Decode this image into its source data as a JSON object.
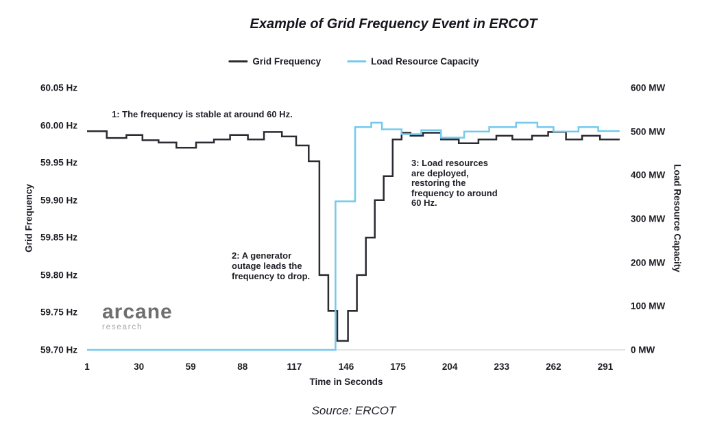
{
  "title": "Example of Grid Frequency Event in ERCOT",
  "source": "Source: ERCOT",
  "logo": {
    "name": "arcane",
    "sub": "research"
  },
  "legend": {
    "items": [
      {
        "label": "Grid Frequency",
        "color": "#2a2a31"
      },
      {
        "label": "Load Resource Capacity",
        "color": "#74c9ee"
      }
    ]
  },
  "annotations": [
    {
      "text": "1: The frequency is stable at around 60 Hz."
    },
    {
      "text": "2: A generator\noutage leads the\nfrequency to drop."
    },
    {
      "text": "3: Load resources\nare deployed,\nrestoring the\nfrequency to around\n60 Hz."
    }
  ],
  "chart_data": {
    "type": "line",
    "step": true,
    "grid": "off",
    "legend_position": "top",
    "title": "Example of Grid Frequency Event in ERCOT",
    "xlabel": "Time in Seconds",
    "x_range": [
      1,
      299
    ],
    "x_ticks": [
      {
        "value": 1,
        "label": "1"
      },
      {
        "value": 30,
        "label": "30"
      },
      {
        "value": 59,
        "label": "59"
      },
      {
        "value": 88,
        "label": "88"
      },
      {
        "value": 117,
        "label": "117"
      },
      {
        "value": 146,
        "label": "146"
      },
      {
        "value": 175,
        "label": "175"
      },
      {
        "value": 204,
        "label": "204"
      },
      {
        "value": 233,
        "label": "233"
      },
      {
        "value": 262,
        "label": "262"
      },
      {
        "value": 291,
        "label": "291"
      }
    ],
    "left_axis": {
      "label": "Grid Frequency",
      "unit": "Hz",
      "range": [
        59.7,
        60.05
      ],
      "ticks": [
        {
          "value": 60.05,
          "label": "60.05 Hz"
        },
        {
          "value": 60.0,
          "label": "60.00 Hz"
        },
        {
          "value": 59.95,
          "label": "59.95 Hz"
        },
        {
          "value": 59.9,
          "label": "59.90 Hz"
        },
        {
          "value": 59.85,
          "label": "59.85 Hz"
        },
        {
          "value": 59.8,
          "label": "59.80 Hz"
        },
        {
          "value": 59.75,
          "label": "59.75 Hz"
        },
        {
          "value": 59.7,
          "label": "59.70 Hz"
        }
      ]
    },
    "right_axis": {
      "label": "Load Resource Capacity",
      "unit": "MW",
      "range": [
        0,
        600
      ],
      "ticks": [
        {
          "value": 600,
          "label": "600 MW"
        },
        {
          "value": 500,
          "label": "500 MW"
        },
        {
          "value": 400,
          "label": "400 MW"
        },
        {
          "value": 300,
          "label": "300 MW"
        },
        {
          "value": 200,
          "label": "200 MW"
        },
        {
          "value": 100,
          "label": "100 MW"
        },
        {
          "value": 0,
          "label": "0 MW"
        }
      ]
    },
    "series": [
      {
        "name": "Grid Frequency",
        "axis": "left",
        "color": "#2a2a31",
        "points": [
          [
            1,
            59.992
          ],
          [
            12,
            59.983
          ],
          [
            23,
            59.987
          ],
          [
            32,
            59.98
          ],
          [
            41,
            59.977
          ],
          [
            51,
            59.97
          ],
          [
            62,
            59.977
          ],
          [
            72,
            59.981
          ],
          [
            81,
            59.987
          ],
          [
            91,
            59.981
          ],
          [
            100,
            59.991
          ],
          [
            110,
            59.985
          ],
          [
            118,
            59.973
          ],
          [
            125,
            59.952
          ],
          [
            131,
            59.8
          ],
          [
            136,
            59.752
          ],
          [
            141,
            59.712
          ],
          [
            147,
            59.752
          ],
          [
            152,
            59.8
          ],
          [
            157,
            59.85
          ],
          [
            162,
            59.9
          ],
          [
            167,
            59.932
          ],
          [
            172,
            59.981
          ],
          [
            177,
            59.99
          ],
          [
            182,
            59.986
          ],
          [
            189,
            59.99
          ],
          [
            199,
            59.981
          ],
          [
            209,
            59.976
          ],
          [
            220,
            59.981
          ],
          [
            230,
            59.986
          ],
          [
            239,
            59.981
          ],
          [
            250,
            59.986
          ],
          [
            259,
            59.991
          ],
          [
            269,
            59.981
          ],
          [
            278,
            59.986
          ],
          [
            288,
            59.981
          ],
          [
            299,
            59.981
          ]
        ]
      },
      {
        "name": "Load Resource Capacity",
        "axis": "right",
        "color": "#74c9ee",
        "points": [
          [
            1,
            0
          ],
          [
            140,
            340
          ],
          [
            151,
            510
          ],
          [
            160,
            520
          ],
          [
            166,
            505
          ],
          [
            177,
            494
          ],
          [
            188,
            503
          ],
          [
            199,
            486
          ],
          [
            212,
            500
          ],
          [
            226,
            510
          ],
          [
            241,
            520
          ],
          [
            253,
            510
          ],
          [
            262,
            500
          ],
          [
            276,
            510
          ],
          [
            287,
            501
          ],
          [
            299,
            501
          ]
        ]
      }
    ]
  }
}
